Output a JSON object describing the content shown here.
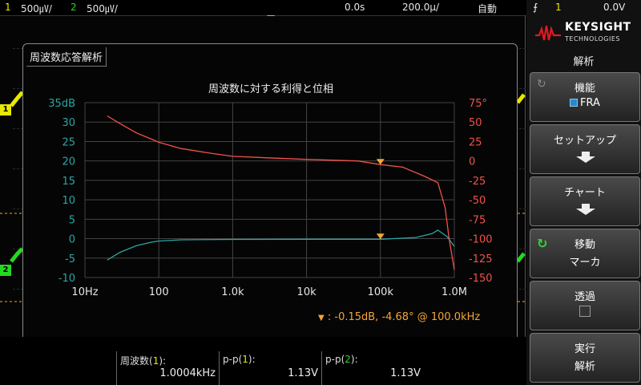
{
  "topbar": {
    "ch1_num": "1",
    "ch1_scale": "500㎶/",
    "ch2_num": "2",
    "ch2_scale": "500㎶/",
    "time_delay": "0.0s",
    "time_scale": "200.0µ/",
    "trigger_mode": "自動"
  },
  "trigger": {
    "slope_icon": "rising-edge-icon",
    "source": "1",
    "level": "0.0V"
  },
  "channels": {
    "ch1_marker": "1",
    "ch2_marker": "2",
    "ch1_color": "#e8e800",
    "ch2_color": "#22d922"
  },
  "fra_window": {
    "title": "周波数応答解析",
    "chart_title": "周波数に対する利得と位相",
    "marker_readout": "-0.15dB, -4.68° @ 100.0kHz",
    "marker_colon": ":"
  },
  "chart_data": {
    "type": "line",
    "title": "周波数に対する利得と位相",
    "x_scale": "log",
    "x_ticks": [
      {
        "value": 10,
        "label": "10Hz"
      },
      {
        "value": 100,
        "label": "100"
      },
      {
        "value": 1000,
        "label": "1.0k"
      },
      {
        "value": 10000,
        "label": "10k"
      },
      {
        "value": 100000,
        "label": "100k"
      },
      {
        "value": 1000000,
        "label": "1.0M"
      }
    ],
    "xlim": [
      10,
      1000000
    ],
    "y_left": {
      "ticks": [
        "35dB",
        "30",
        "25",
        "20",
        "15",
        "10",
        "5",
        "0",
        "-5",
        "-10"
      ],
      "values": [
        35,
        30,
        25,
        20,
        15,
        10,
        5,
        0,
        -5,
        -10
      ],
      "ylim": [
        -10,
        35
      ],
      "color": "#2aa5a5"
    },
    "y_right": {
      "ticks": [
        "75°",
        "50",
        "25",
        "0",
        "-25",
        "-50",
        "-75",
        "-100",
        "-125",
        "-150"
      ],
      "values": [
        75,
        50,
        25,
        0,
        -25,
        -50,
        -75,
        -100,
        -125,
        -150
      ],
      "ylim": [
        -150,
        75
      ],
      "color": "#f0524a"
    },
    "grid": true,
    "series": [
      {
        "axis": "left",
        "color": "#2aa5a5",
        "points": [
          [
            20,
            -5.5
          ],
          [
            30,
            -3.5
          ],
          [
            50,
            -1.8
          ],
          [
            80,
            -0.9
          ],
          [
            100,
            -0.6
          ],
          [
            200,
            -0.3
          ],
          [
            1000,
            -0.2
          ],
          [
            10000,
            -0.15
          ],
          [
            100000,
            -0.15
          ],
          [
            300000,
            0.3
          ],
          [
            500000,
            1.3
          ],
          [
            600000,
            2.2
          ],
          [
            800000,
            0.5
          ],
          [
            1000000,
            -2.0
          ]
        ]
      },
      {
        "axis": "right",
        "color": "#f0524a",
        "points": [
          [
            20,
            58
          ],
          [
            30,
            48
          ],
          [
            50,
            36
          ],
          [
            80,
            28
          ],
          [
            100,
            24
          ],
          [
            200,
            16
          ],
          [
            500,
            10
          ],
          [
            1000,
            6
          ],
          [
            3000,
            4
          ],
          [
            10000,
            2
          ],
          [
            50000,
            0
          ],
          [
            100000,
            -4.68
          ],
          [
            200000,
            -8
          ],
          [
            400000,
            -20
          ],
          [
            600000,
            -28
          ],
          [
            750000,
            -60
          ],
          [
            850000,
            -100
          ],
          [
            1000000,
            -140
          ]
        ]
      }
    ],
    "marker": {
      "x": 100000,
      "gain": -0.15,
      "phase": -4.68,
      "color": "#f7a531"
    }
  },
  "measurements": [
    {
      "label": "周波数",
      "channel": "1",
      "value": "1.0004kHz"
    },
    {
      "label": "p-p",
      "channel": "1",
      "value": "1.13V"
    },
    {
      "label": "p-p",
      "channel": "2",
      "value": "1.13V"
    }
  ],
  "sidepanel": {
    "brand": "KEYSIGHT",
    "brand_sub": "TECHNOLOGIES",
    "menu_title": "解析",
    "softkeys": [
      {
        "label": "機能",
        "value": "FRA"
      },
      {
        "label": "セットアップ"
      },
      {
        "label": "チャート"
      },
      {
        "label": "移動",
        "value": "マーカ"
      },
      {
        "label": "透過"
      },
      {
        "label": "実行",
        "value": "解析"
      }
    ]
  }
}
